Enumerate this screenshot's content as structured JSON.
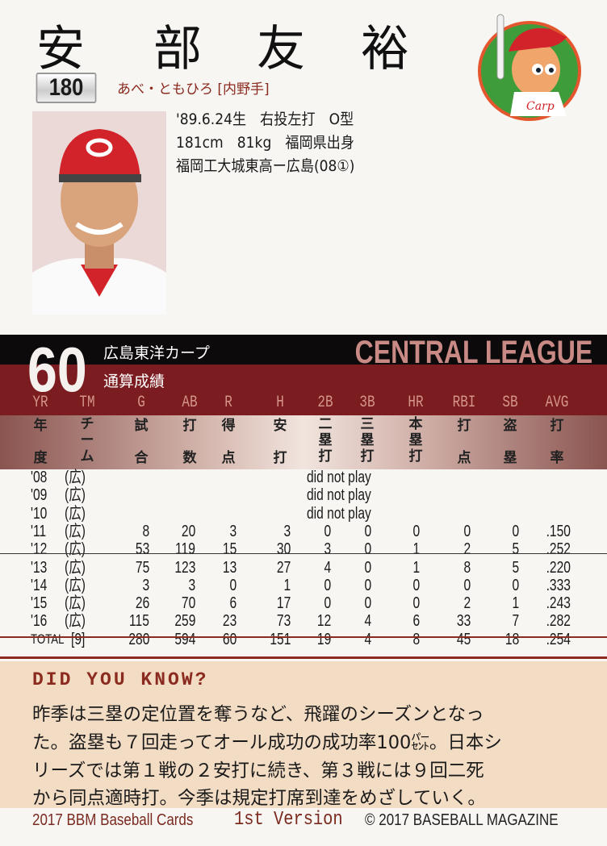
{
  "player": {
    "name_chars": [
      "安",
      "部",
      "友",
      "裕"
    ],
    "card_number": "180",
    "reading_position": "あべ・ともひろ [内野手]",
    "bio": [
      "'89.6.24生　右投左打　O型",
      "181cm　81kg　福岡県出身",
      "福岡工大城東高ー広島(08①)"
    ],
    "uniform_number": "60",
    "team": "広島東洋カープ",
    "career_label": "通算成績",
    "league": "CENTRAL LEAGUE"
  },
  "stats": {
    "headers": [
      "YR",
      "TM",
      "G",
      "AB",
      "R",
      "H",
      "2B",
      "3B",
      "HR",
      "RBI",
      "SB",
      "AVG"
    ],
    "headers_jp": [
      "年度",
      "チーム",
      "試合",
      "打数",
      "得点",
      "安打",
      "二塁打",
      "三塁打",
      "本塁打",
      "打点",
      "盗塁",
      "打率"
    ],
    "rows": [
      [
        "'08",
        "(広)",
        "did not play"
      ],
      [
        "'09",
        "(広)",
        "did not play"
      ],
      [
        "'10",
        "(広)",
        "did not play"
      ],
      [
        "'11",
        "(広)",
        "8",
        "20",
        "3",
        "3",
        "0",
        "0",
        "0",
        "0",
        "0",
        ".150"
      ],
      [
        "'12",
        "(広)",
        "53",
        "119",
        "15",
        "30",
        "3",
        "0",
        "1",
        "2",
        "5",
        ".252"
      ],
      [
        "'13",
        "(広)",
        "75",
        "123",
        "13",
        "27",
        "4",
        "0",
        "1",
        "8",
        "5",
        ".220"
      ],
      [
        "'14",
        "(広)",
        "3",
        "3",
        "0",
        "1",
        "0",
        "0",
        "0",
        "0",
        "0",
        ".333"
      ],
      [
        "'15",
        "(広)",
        "26",
        "70",
        "6",
        "17",
        "0",
        "0",
        "0",
        "2",
        "1",
        ".243"
      ],
      [
        "'16",
        "(広)",
        "115",
        "259",
        "23",
        "73",
        "12",
        "4",
        "6",
        "33",
        "7",
        ".282"
      ],
      [
        "TOTAL",
        "[9]",
        "280",
        "594",
        "60",
        "151",
        "19",
        "4",
        "8",
        "45",
        "18",
        ".254"
      ]
    ]
  },
  "did_you_know": {
    "title": "DID YOU KNOW?",
    "lines": [
      "昨季は三塁の定位置を奪うなど、飛躍のシーズンとなっ",
      "た。盗塁も７回走ってオール成功の成功率100㌫。日本シ",
      "リーズでは第１戦の２安打に続き、第３戦には９回二死",
      "から同点適時打。今季は規定打席到達をめざしていく。"
    ]
  },
  "footer": {
    "set": "2017 BBM Baseball Cards",
    "version": "1st Version",
    "copyright": "© 2017 BASEBALL MAGAZINE"
  },
  "colors": {
    "accent_red": "#8b2a1e",
    "band_red": "#7b1d20",
    "cream": "#f3dcc4"
  }
}
